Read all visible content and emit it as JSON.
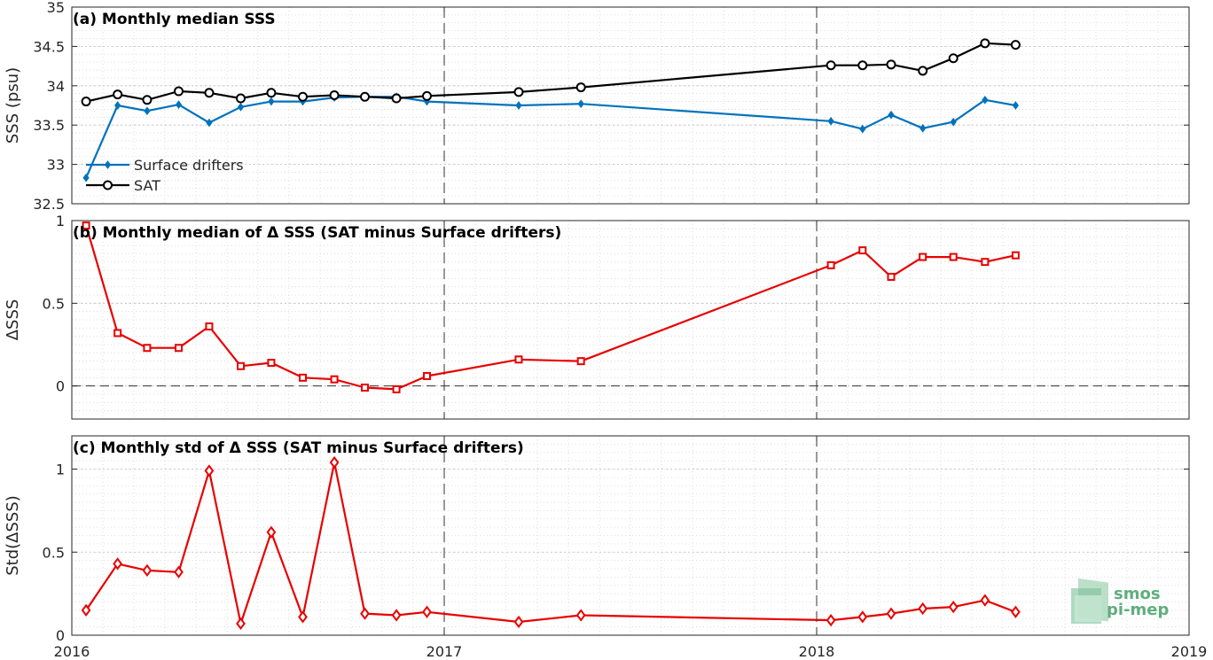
{
  "logo": {
    "line1": "smos",
    "line2": "pi-mep"
  },
  "x_ticks": [
    {
      "label": "2016",
      "year": 2016
    },
    {
      "label": "2017",
      "year": 2017
    },
    {
      "label": "2018",
      "year": 2018
    },
    {
      "label": "2019",
      "year": 2019
    }
  ],
  "chart_data": [
    {
      "type": "line",
      "title": "(a) Monthly median SSS",
      "xlabel": "",
      "ylabel": "SSS (psu)",
      "xlim": [
        "2016-01-01",
        "2019-01-01"
      ],
      "ylim": [
        32.5,
        35
      ],
      "yticks": [
        32.5,
        33,
        33.5,
        34,
        34.5,
        35
      ],
      "ytick_labels": [
        "32.5",
        "33",
        "33.5",
        "34",
        "34.5",
        "35"
      ],
      "grid": true,
      "legend": "lower-left",
      "series": [
        {
          "name": "Surface drifters",
          "color": "#0072BD",
          "marker": "diamond",
          "x": [
            "2016-01-15",
            "2016-02-15",
            "2016-03-15",
            "2016-04-15",
            "2016-05-15",
            "2016-06-15",
            "2016-07-15",
            "2016-08-15",
            "2016-09-15",
            "2016-10-15",
            "2016-11-15",
            "2016-12-15",
            "2017-03-15",
            "2017-05-15",
            "2018-01-15",
            "2018-02-15",
            "2018-03-15",
            "2018-04-15",
            "2018-05-15",
            "2018-06-15",
            "2018-07-15"
          ],
          "values": [
            32.83,
            33.75,
            33.68,
            33.76,
            33.53,
            33.73,
            33.8,
            33.8,
            33.85,
            33.86,
            33.86,
            33.8,
            33.75,
            33.77,
            33.55,
            33.45,
            33.63,
            33.46,
            33.54,
            33.82,
            33.75
          ]
        },
        {
          "name": "SAT",
          "color": "#000000",
          "marker": "circle",
          "x": [
            "2016-01-15",
            "2016-02-15",
            "2016-03-15",
            "2016-04-15",
            "2016-05-15",
            "2016-06-15",
            "2016-07-15",
            "2016-08-15",
            "2016-09-15",
            "2016-10-15",
            "2016-11-15",
            "2016-12-15",
            "2017-03-15",
            "2017-05-15",
            "2018-01-15",
            "2018-02-15",
            "2018-03-15",
            "2018-04-15",
            "2018-05-15",
            "2018-06-15",
            "2018-07-15"
          ],
          "values": [
            33.8,
            33.89,
            33.82,
            33.93,
            33.91,
            33.84,
            33.91,
            33.86,
            33.88,
            33.86,
            33.84,
            33.87,
            33.92,
            33.98,
            34.26,
            34.26,
            34.27,
            34.19,
            34.35,
            34.54,
            34.52
          ]
        }
      ]
    },
    {
      "type": "line",
      "title": "(b) Monthly median of Δ SSS (SAT minus Surface drifters)",
      "xlabel": "",
      "ylabel": "ΔSSS",
      "xlim": [
        "2016-01-01",
        "2019-01-01"
      ],
      "ylim": [
        -0.2,
        1
      ],
      "yticks": [
        0,
        0.5,
        1
      ],
      "ytick_labels": [
        "0",
        "0.5",
        "1"
      ],
      "grid": true,
      "zero_line": true,
      "series": [
        {
          "color": "#e80000",
          "marker": "square",
          "x": [
            "2016-01-15",
            "2016-02-15",
            "2016-03-15",
            "2016-04-15",
            "2016-05-15",
            "2016-06-15",
            "2016-07-15",
            "2016-08-15",
            "2016-09-15",
            "2016-10-15",
            "2016-11-15",
            "2016-12-15",
            "2017-03-15",
            "2017-05-15",
            "2018-01-15",
            "2018-02-15",
            "2018-03-15",
            "2018-04-15",
            "2018-05-15",
            "2018-06-15",
            "2018-07-15"
          ],
          "values": [
            0.97,
            0.32,
            0.23,
            0.23,
            0.36,
            0.12,
            0.14,
            0.05,
            0.04,
            -0.01,
            -0.02,
            0.06,
            0.16,
            0.15,
            0.73,
            0.82,
            0.66,
            0.78,
            0.78,
            0.75,
            0.79
          ]
        }
      ]
    },
    {
      "type": "line",
      "title": "(c) Monthly std of Δ SSS (SAT minus Surface drifters)",
      "xlabel": "",
      "ylabel": "Std(ΔSSS)",
      "xlim": [
        "2016-01-01",
        "2019-01-01"
      ],
      "ylim": [
        0,
        1.2
      ],
      "yticks": [
        0,
        0.5,
        1
      ],
      "ytick_labels": [
        "0",
        "0.5",
        "1"
      ],
      "grid": true,
      "series": [
        {
          "color": "#e80000",
          "marker": "diamond",
          "x": [
            "2016-01-15",
            "2016-02-15",
            "2016-03-15",
            "2016-04-15",
            "2016-05-15",
            "2016-06-15",
            "2016-07-15",
            "2016-08-15",
            "2016-09-15",
            "2016-10-15",
            "2016-11-15",
            "2016-12-15",
            "2017-03-15",
            "2017-05-15",
            "2018-01-15",
            "2018-02-15",
            "2018-03-15",
            "2018-04-15",
            "2018-05-15",
            "2018-06-15",
            "2018-07-15"
          ],
          "values": [
            0.15,
            0.43,
            0.39,
            0.38,
            0.99,
            0.07,
            0.62,
            0.11,
            1.04,
            0.13,
            0.12,
            0.14,
            0.08,
            0.12,
            0.09,
            0.11,
            0.13,
            0.16,
            0.17,
            0.21,
            0.14
          ]
        }
      ]
    }
  ]
}
